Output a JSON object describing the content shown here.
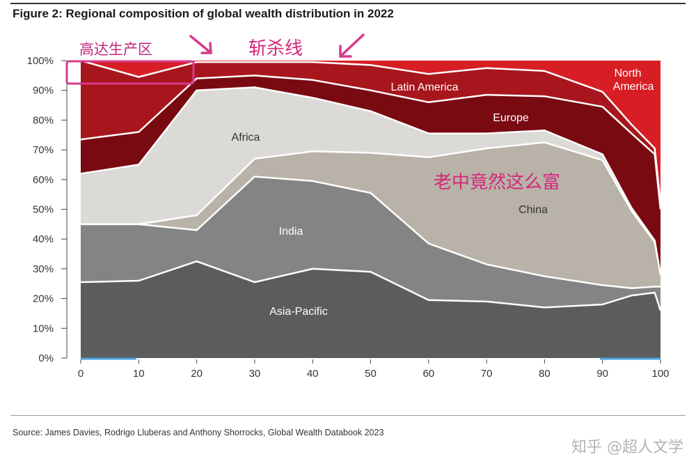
{
  "figure": {
    "title": "Figure 2: Regional composition of global wealth distribution in 2022",
    "source": "Source: James Davies, Rodrigo Lluberas and Anthony Shorrocks, Global Wealth Databook 2023",
    "watermark": "知乎 @超人文学"
  },
  "annotations": {
    "gaoda": "高达生产区",
    "zhansha": "斩杀线",
    "laozhong": "老中竟然这么富"
  },
  "colors": {
    "asia_pacific": "#5c5c5c",
    "india": "#848484",
    "china": "#b9b2a8",
    "africa": "#dcdad6",
    "europe": "#7a0a12",
    "latin_america": "#a8161d",
    "north_america": "#d81e25",
    "boundary": "#ffffff",
    "annotation": "#d6267a"
  },
  "chart_data": {
    "type": "area",
    "stacked": true,
    "x": [
      0,
      10,
      20,
      30,
      40,
      50,
      60,
      70,
      80,
      90,
      95,
      99,
      100
    ],
    "x_ticks": [
      "0",
      "10",
      "20",
      "30",
      "40",
      "50",
      "60",
      "70",
      "80",
      "90",
      "100"
    ],
    "y_ticks": [
      "0%",
      "10%",
      "20%",
      "30%",
      "40%",
      "50%",
      "60%",
      "70%",
      "80%",
      "90%",
      "100%"
    ],
    "ylim": [
      0,
      100
    ],
    "xlim": [
      0,
      100
    ],
    "grid": false,
    "series": [
      {
        "name": "Asia-Pacific",
        "values": [
          25.5,
          26,
          32.5,
          25.5,
          30,
          29,
          19.5,
          19,
          17,
          18,
          21,
          22,
          16
        ]
      },
      {
        "name": "India",
        "values": [
          19.5,
          19,
          10.5,
          35.5,
          29.5,
          26.5,
          19,
          12.5,
          10.5,
          6.5,
          2.5,
          2,
          8
        ]
      },
      {
        "name": "China",
        "values": [
          0,
          0,
          5,
          6,
          10,
          13.5,
          29,
          39,
          45,
          42,
          26,
          15,
          4
        ]
      },
      {
        "name": "Africa",
        "values": [
          17,
          20,
          42,
          24,
          18,
          14,
          8,
          5,
          4,
          2,
          1,
          0.5,
          0
        ]
      },
      {
        "name": "Europe",
        "values": [
          11.5,
          11,
          4,
          4,
          6,
          7,
          10.5,
          13,
          11.5,
          16,
          25,
          29,
          22
        ]
      },
      {
        "name": "Latin America",
        "values": [
          26.5,
          18.5,
          5.5,
          4.5,
          6,
          8.5,
          9.5,
          9,
          8.5,
          5,
          3,
          2,
          2
        ]
      },
      {
        "name": "North America",
        "values": [
          0,
          5.5,
          0.5,
          0.5,
          0.5,
          1.5,
          4.5,
          2.5,
          3.5,
          10.5,
          21.5,
          29.5,
          48
        ]
      }
    ]
  }
}
